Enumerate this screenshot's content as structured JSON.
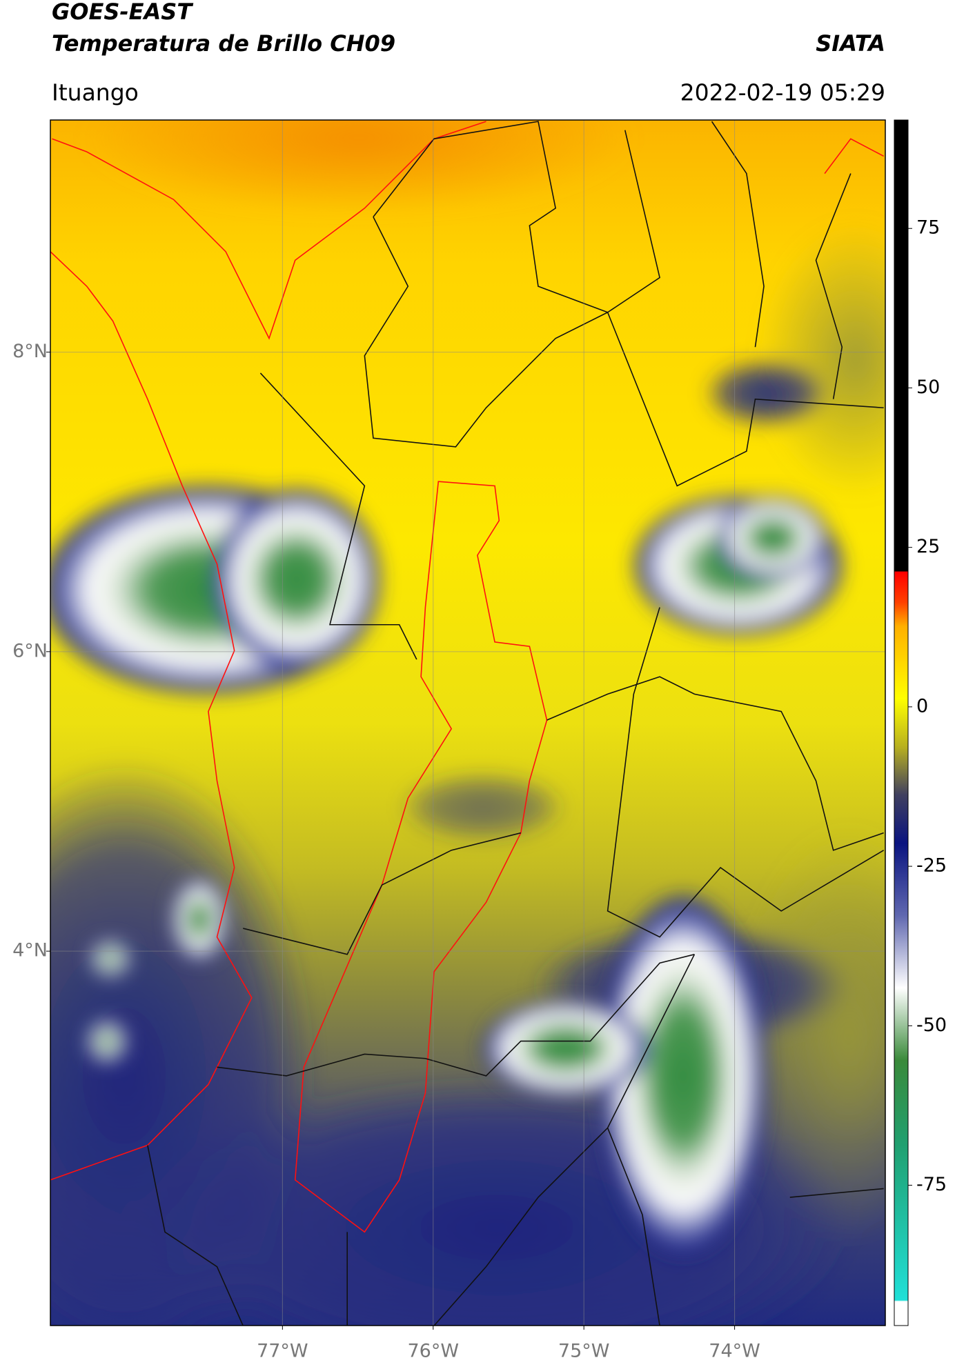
{
  "header": {
    "satellite": "GOES-EAST",
    "product": "Temperatura de Brillo CH09",
    "source": "SIATA",
    "location": "Ituango",
    "datetime": "2022-02-19 05:29"
  },
  "map": {
    "xlim": [
      -78.54,
      -73.0
    ],
    "ylim": [
      1.5,
      9.55
    ],
    "grid": true,
    "xticks": [
      {
        "value": -77,
        "label": "77°W"
      },
      {
        "value": -76,
        "label": "76°W"
      },
      {
        "value": -75,
        "label": "75°W"
      },
      {
        "value": -74,
        "label": "74°W"
      }
    ],
    "yticks": [
      {
        "value": 4,
        "label": "4°N"
      },
      {
        "value": 6,
        "label": "6°N"
      },
      {
        "value": 8,
        "label": "8°N"
      }
    ]
  },
  "colorbar": {
    "lim": [
      -97,
      92
    ],
    "ticks": [
      -75,
      -50,
      -25,
      0,
      25,
      50,
      75
    ]
  }
}
